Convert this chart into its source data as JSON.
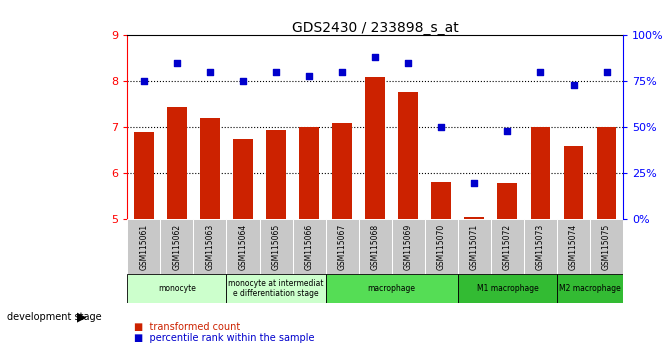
{
  "title": "GDS2430 / 233898_s_at",
  "samples": [
    "GSM115061",
    "GSM115062",
    "GSM115063",
    "GSM115064",
    "GSM115065",
    "GSM115066",
    "GSM115067",
    "GSM115068",
    "GSM115069",
    "GSM115070",
    "GSM115071",
    "GSM115072",
    "GSM115073",
    "GSM115074",
    "GSM115075"
  ],
  "bar_values": [
    6.9,
    7.45,
    7.2,
    6.75,
    6.95,
    7.0,
    7.1,
    8.1,
    7.78,
    5.82,
    5.05,
    5.8,
    7.0,
    6.6,
    7.0
  ],
  "scatter_values": [
    75,
    85,
    80,
    75,
    80,
    78,
    80,
    88,
    85,
    50,
    20,
    48,
    80,
    73,
    80
  ],
  "bar_color": "#cc2200",
  "scatter_color": "#0000cc",
  "ylim_left": [
    5,
    9
  ],
  "ylim_right": [
    0,
    100
  ],
  "yticks_left": [
    5,
    6,
    7,
    8,
    9
  ],
  "yticks_right": [
    0,
    25,
    50,
    75,
    100
  ],
  "ytick_labels_right": [
    "0%",
    "25%",
    "50%",
    "75%",
    "100%"
  ],
  "grid_values": [
    6,
    7,
    8
  ],
  "stage_groups": [
    {
      "label": "monocyte",
      "start": 0,
      "end": 3,
      "color": "#ccffcc"
    },
    {
      "label": "monocyte at intermediat\ne differentiation stage",
      "start": 3,
      "end": 6,
      "color": "#ccffcc"
    },
    {
      "label": "macrophage",
      "start": 6,
      "end": 10,
      "color": "#55dd55"
    },
    {
      "label": "M1 macrophage",
      "start": 10,
      "end": 13,
      "color": "#33bb33"
    },
    {
      "label": "M2 macrophage",
      "start": 13,
      "end": 15,
      "color": "#33bb33"
    }
  ],
  "legend_bar_label": "transformed count",
  "legend_scatter_label": "percentile rank within the sample",
  "dev_stage_label": "development stage",
  "background_color": "#ffffff",
  "tick_area_color": "#c8c8c8"
}
